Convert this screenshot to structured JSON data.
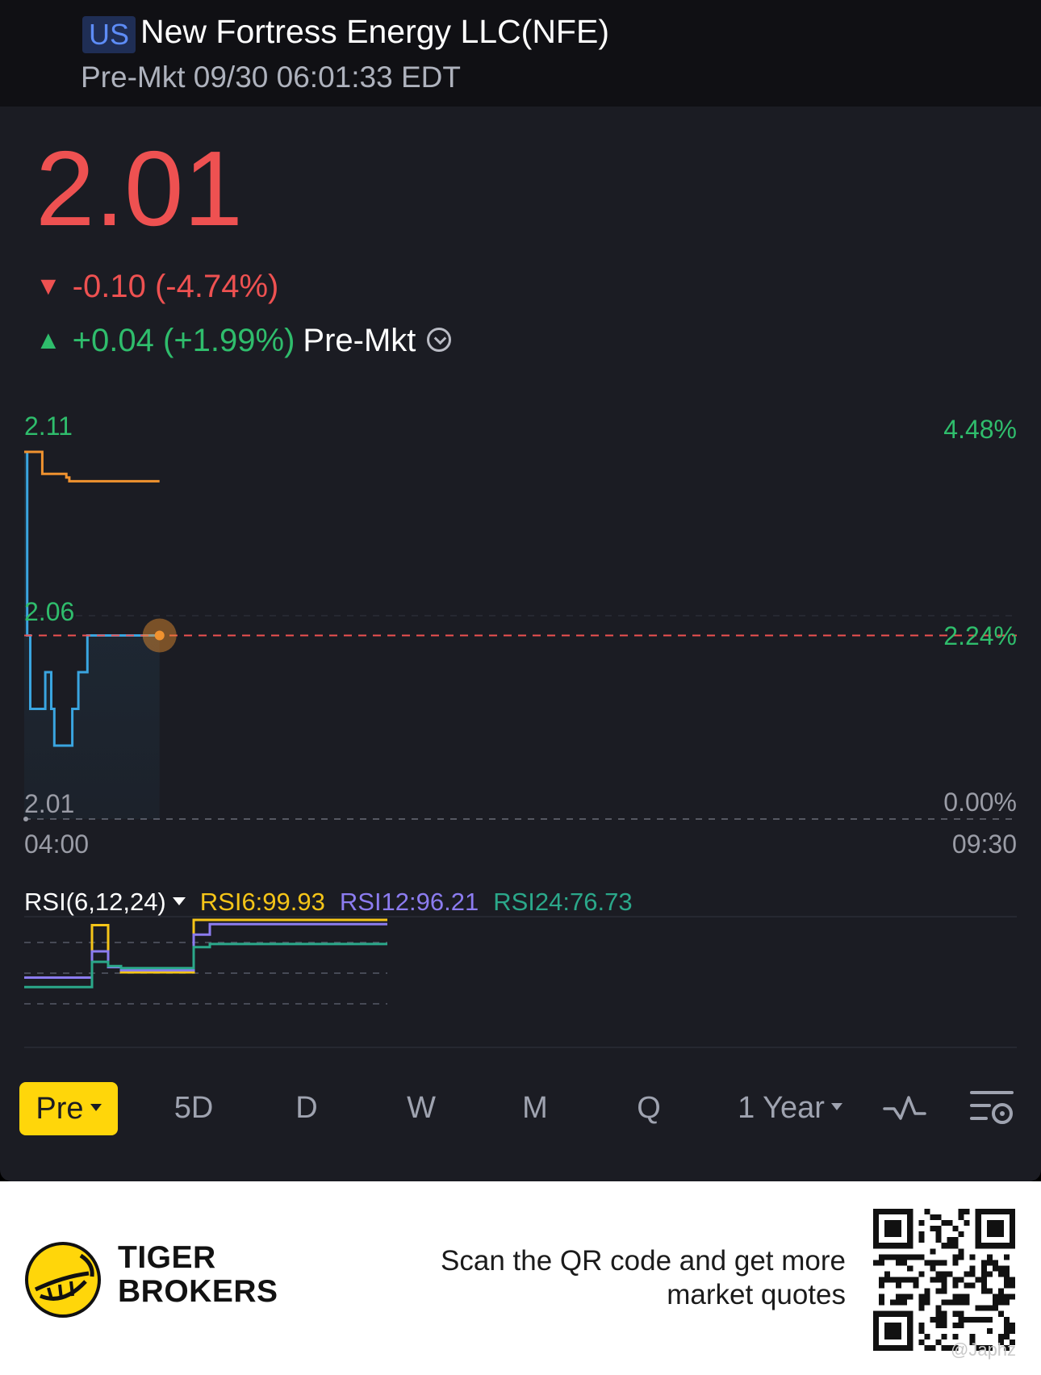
{
  "header": {
    "market_badge": "US",
    "title": "New Fortress Energy LLC(NFE)",
    "subtitle": "Pre-Mkt 09/30 06:01:33 EDT"
  },
  "quote": {
    "price": "2.01",
    "change": "-0.10 (-4.74%)",
    "premarket_change": "+0.04 (+1.99%)",
    "premarket_label": "Pre-Mkt",
    "down_color": "#ee5151",
    "up_color": "#2fbd6c"
  },
  "chart": {
    "y_top": "2.11",
    "y_mid": "2.06",
    "y_bottom": "2.01",
    "pct_top": "4.48%",
    "pct_mid": "2.24%",
    "pct_bottom": "0.00%",
    "x_start": "04:00",
    "x_end": "09:30"
  },
  "rsi": {
    "label": "RSI(6,12,24)",
    "rsi6": "RSI6:99.93",
    "rsi12": "RSI12:96.21",
    "rsi24": "RSI24:76.73",
    "colors": {
      "rsi6": "#f5c518",
      "rsi12": "#8c7cf0",
      "rsi24": "#2ba88a"
    }
  },
  "chart_data": [
    {
      "type": "line",
      "xlabel": "",
      "ylabel": "",
      "x_range": [
        "04:00",
        "09:30"
      ],
      "ylim": [
        2.01,
        2.11
      ],
      "reference_line": 2.06,
      "series": [
        {
          "color": "#3aa5e0",
          "x": [
            "04:00",
            "04:01",
            "04:02",
            "04:06",
            "04:07",
            "04:08",
            "04:09",
            "04:10",
            "04:15",
            "04:16",
            "04:18",
            "04:20",
            "04:21",
            "04:22",
            "04:45"
          ],
          "values": [
            2.11,
            2.06,
            2.04,
            2.04,
            2.05,
            2.05,
            2.04,
            2.03,
            2.03,
            2.04,
            2.05,
            2.05,
            2.06,
            2.06,
            2.06
          ]
        },
        {
          "color": "#f0922f",
          "x": [
            "04:00",
            "04:05",
            "04:06",
            "04:13",
            "04:14",
            "04:15",
            "04:45"
          ],
          "values": [
            2.11,
            2.11,
            2.104,
            2.104,
            2.103,
            2.102,
            2.102
          ]
        }
      ]
    },
    {
      "type": "line",
      "title": "RSI(6,12,24)",
      "ylim": [
        0,
        100
      ],
      "series": [
        {
          "name": "RSI6",
          "color": "#f5c518",
          "values": [
            45,
            45,
            45,
            95,
            95,
            55,
            50,
            50,
            50,
            50,
            100,
            100,
            100
          ]
        },
        {
          "name": "RSI12",
          "color": "#8c7cf0",
          "values": [
            45,
            45,
            45,
            70,
            70,
            55,
            52,
            52,
            52,
            52,
            86,
            96,
            96
          ]
        },
        {
          "name": "RSI24",
          "color": "#2ba88a",
          "values": [
            36,
            36,
            36,
            60,
            60,
            56,
            54,
            54,
            54,
            54,
            74,
            77,
            77
          ]
        }
      ]
    }
  ],
  "tabs": {
    "pre": "Pre",
    "five_day": "5D",
    "day": "D",
    "week": "W",
    "month": "M",
    "quarter": "Q",
    "year": "1 Year"
  },
  "footer": {
    "brand_line1": "TIGER",
    "brand_line2": "BROKERS",
    "scan_line1": "Scan the QR code and get more",
    "scan_line2": "market quotes",
    "watermark": "@Japhz"
  }
}
